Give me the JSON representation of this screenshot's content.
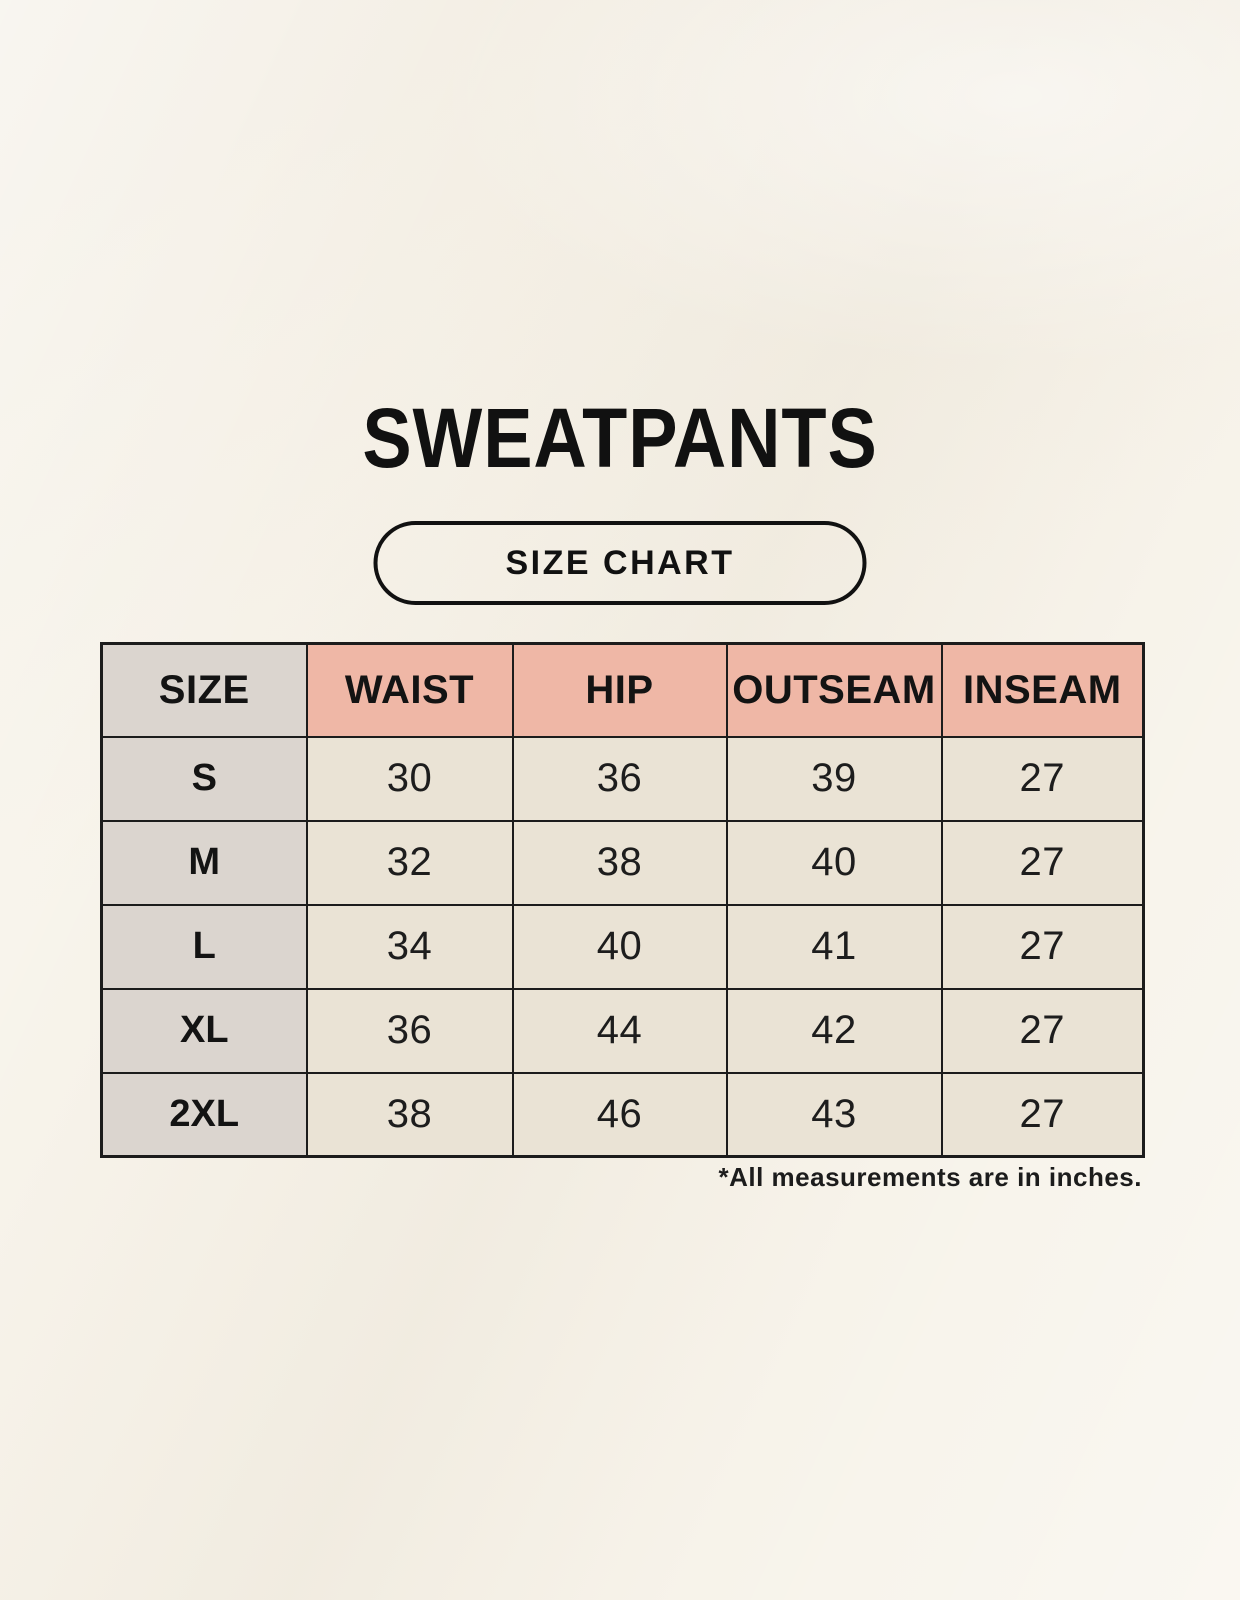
{
  "page": {
    "title": "SWEATPANTS",
    "badge_label": "SIZE CHART",
    "footnote": "*All measurements are in inches."
  },
  "table": {
    "headers": [
      "SIZE",
      "WAIST",
      "HIP",
      "OUTSEAM",
      "INSEAM"
    ],
    "rows": [
      {
        "size": "S",
        "values": [
          "30",
          "36",
          "39",
          "27"
        ]
      },
      {
        "size": "M",
        "values": [
          "32",
          "38",
          "40",
          "27"
        ]
      },
      {
        "size": "L",
        "values": [
          "34",
          "40",
          "41",
          "27"
        ]
      },
      {
        "size": "XL",
        "values": [
          "36",
          "44",
          "42",
          "27"
        ]
      },
      {
        "size": "2XL",
        "values": [
          "38",
          "46",
          "43",
          "27"
        ]
      }
    ]
  },
  "colors": {
    "background": "#f7f3ea",
    "header_accent": "#efb7a6",
    "size_column": "#dbd5cf",
    "value_cell": "#eae3d5",
    "border": "#1c1c1c",
    "text": "#111111"
  }
}
